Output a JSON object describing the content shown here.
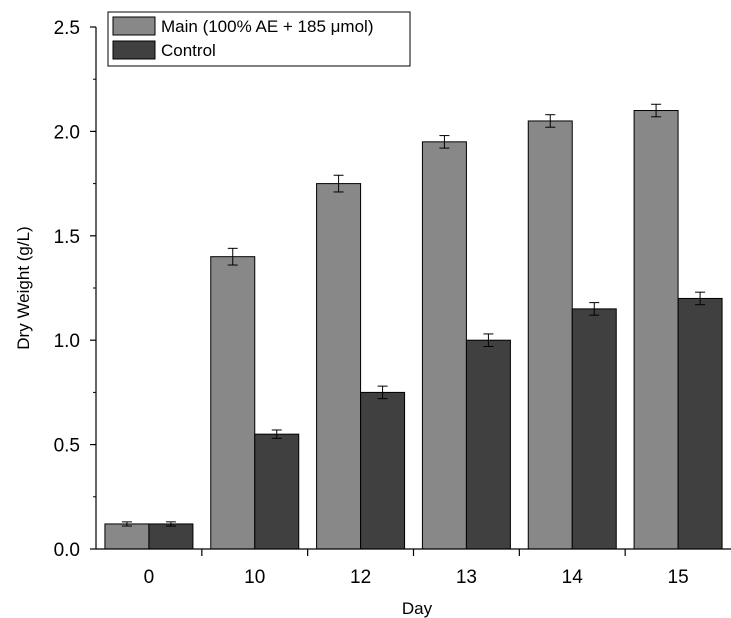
{
  "chart_data": {
    "type": "bar",
    "categories": [
      "0",
      "10",
      "12",
      "13",
      "14",
      "15"
    ],
    "series": [
      {
        "name": "Main (100% AE + 185 μmol)",
        "values": [
          0.12,
          1.4,
          1.75,
          1.95,
          2.05,
          2.1
        ],
        "errors": [
          0.01,
          0.04,
          0.04,
          0.03,
          0.03,
          0.03
        ],
        "color": "#888888"
      },
      {
        "name": "Control",
        "values": [
          0.12,
          0.55,
          0.75,
          1.0,
          1.15,
          1.2
        ],
        "errors": [
          0.01,
          0.02,
          0.03,
          0.03,
          0.03,
          0.03
        ],
        "color": "#404040"
      }
    ],
    "xlabel": "Day",
    "ylabel": "Dry Weight (g/L)",
    "ylim": [
      0,
      2.5
    ],
    "yticks": [
      "0.0",
      "0.5",
      "1.0",
      "1.5",
      "2.0",
      "2.5"
    ],
    "legend_position": "top-left",
    "grid": false
  }
}
